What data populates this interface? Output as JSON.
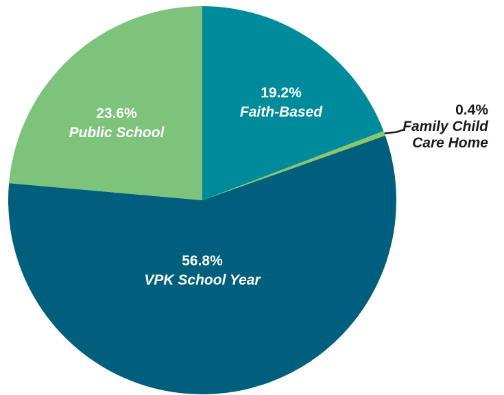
{
  "chart_data": {
    "type": "pie",
    "categories": [
      "Faith-Based",
      "Family Child Care Home",
      "VPK School Year",
      "Public School"
    ],
    "values": [
      19.2,
      0.4,
      56.8,
      23.6
    ],
    "value_labels": [
      "19.2%",
      "0.4%",
      "56.8%",
      "23.6%"
    ],
    "colors": [
      "#008b9c",
      "#8cc66a",
      "#005f7d",
      "#7dc37c"
    ]
  }
}
